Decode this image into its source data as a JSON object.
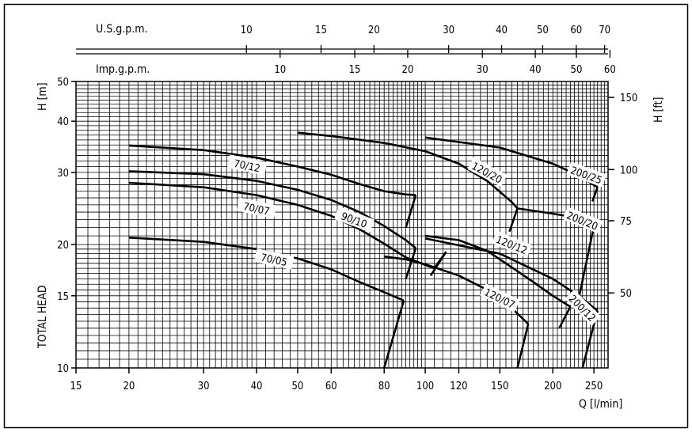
{
  "chart_data": {
    "type": "line",
    "x_scale": "log",
    "y_scale": "log",
    "grid": true,
    "xlim": [
      15,
      270
    ],
    "ylim": [
      10,
      50
    ],
    "xlabel": "Q [l/min]",
    "ylabel": "TOTAL HEAD",
    "ylabel_top": "H [m]",
    "ylabel_right": "H [ft]",
    "x_ticks": [
      15,
      20,
      30,
      40,
      50,
      60,
      80,
      100,
      120,
      150,
      200,
      250
    ],
    "y_ticks": [
      10,
      15,
      20,
      30,
      40,
      50
    ],
    "right_ticks": [
      50,
      75,
      100,
      150
    ],
    "top_axis_1": {
      "label": "U.S.g.p.m.",
      "ticks": [
        10,
        15,
        20,
        30,
        40,
        50,
        60,
        70
      ]
    },
    "top_axis_2": {
      "label": "Imp.g.p.m.",
      "ticks": [
        10,
        15,
        20,
        30,
        40,
        50,
        60
      ]
    },
    "series": [
      {
        "name": "70/05",
        "curve": [
          [
            20,
            20.8
          ],
          [
            30,
            20.3
          ],
          [
            40,
            19.5
          ],
          [
            50,
            18.5
          ],
          [
            60,
            17.4
          ],
          [
            70,
            16.2
          ],
          [
            80,
            15.3
          ],
          [
            89,
            14.6
          ]
        ],
        "cutoff": [
          [
            89,
            14.6
          ],
          [
            80,
            10
          ]
        ]
      },
      {
        "name": "70/07",
        "curve": [
          [
            20,
            28.3
          ],
          [
            30,
            27.6
          ],
          [
            40,
            26.4
          ],
          [
            50,
            25
          ],
          [
            60,
            23.5
          ],
          [
            70,
            21.8
          ],
          [
            80,
            20.1
          ],
          [
            90,
            18.6
          ],
          [
            105,
            17.5
          ],
          [
            112,
            19.2
          ]
        ],
        "cutoff": [
          [
            112,
            19.2
          ],
          [
            103,
            16.8
          ]
        ]
      },
      {
        "name": "70/12",
        "curve": [
          [
            20,
            34.9
          ],
          [
            30,
            34
          ],
          [
            40,
            32.6
          ],
          [
            50,
            31
          ],
          [
            60,
            29.6
          ],
          [
            70,
            28.1
          ],
          [
            80,
            27
          ],
          [
            90,
            26.5
          ],
          [
            95,
            26.4
          ]
        ],
        "cutoff": [
          [
            95,
            26.4
          ],
          [
            90,
            22
          ]
        ]
      },
      {
        "name": "90/10",
        "curve": [
          [
            20,
            30.2
          ],
          [
            30,
            29.7
          ],
          [
            40,
            28.6
          ],
          [
            50,
            27.2
          ],
          [
            60,
            25.7
          ],
          [
            70,
            24
          ],
          [
            80,
            22.2
          ],
          [
            90,
            20.5
          ],
          [
            95,
            19.6
          ]
        ],
        "cutoff": [
          [
            95,
            19.6
          ],
          [
            90,
            16.5
          ]
        ]
      },
      {
        "name": "120/07",
        "curve": [
          [
            80,
            18.7
          ],
          [
            90,
            18.4
          ],
          [
            100,
            17.9
          ],
          [
            120,
            16.8
          ],
          [
            140,
            15.5
          ],
          [
            160,
            14
          ],
          [
            175,
            12.8
          ]
        ],
        "cutoff": [
          [
            175,
            12.8
          ],
          [
            165,
            10
          ]
        ]
      },
      {
        "name": "120/12",
        "curve": [
          [
            100,
            21
          ],
          [
            120,
            20.5
          ],
          [
            140,
            19.3
          ],
          [
            160,
            17.6
          ],
          [
            180,
            16.2
          ],
          [
            200,
            15
          ],
          [
            220,
            14.1
          ]
        ],
        "cutoff": [
          [
            220,
            14.1
          ],
          [
            207,
            12.5
          ]
        ]
      },
      {
        "name": "120/20",
        "curve": [
          [
            50,
            37.5
          ],
          [
            60,
            36.8
          ],
          [
            80,
            35.4
          ],
          [
            100,
            33.8
          ],
          [
            120,
            31.5
          ],
          [
            140,
            28.6
          ],
          [
            160,
            25.4
          ],
          [
            165,
            24.5
          ]
        ],
        "cutoff": [
          [
            165,
            24.5
          ],
          [
            158,
            21.5
          ]
        ]
      },
      {
        "name": "200/12",
        "curve": [
          [
            100,
            20.7
          ],
          [
            150,
            19
          ],
          [
            200,
            16.5
          ],
          [
            230,
            15
          ],
          [
            255,
            13.8
          ]
        ],
        "cutoff": [
          [
            255,
            13.8
          ],
          [
            235,
            10
          ]
        ]
      },
      {
        "name": "200/20",
        "curve": [
          [
            165,
            24.5
          ],
          [
            200,
            23.8
          ],
          [
            230,
            23.2
          ],
          [
            251,
            22.6
          ]
        ],
        "cutoff": [
          [
            251,
            22.6
          ],
          [
            231,
            15
          ]
        ]
      },
      {
        "name": "200/25",
        "curve": [
          [
            100,
            36.5
          ],
          [
            150,
            34.5
          ],
          [
            200,
            31.5
          ],
          [
            230,
            29.5
          ],
          [
            255,
            27.6
          ]
        ],
        "cutoff": [
          [
            255,
            27.6
          ],
          [
            248,
            25.5
          ]
        ]
      }
    ]
  },
  "labels": {
    "us_label": "U.S.g.p.m.",
    "imp_label": "Imp.g.p.m.",
    "h_m": "H [m]",
    "h_ft": "H [ft]",
    "total_head": "TOTAL HEAD",
    "q": "Q [l/min]"
  }
}
